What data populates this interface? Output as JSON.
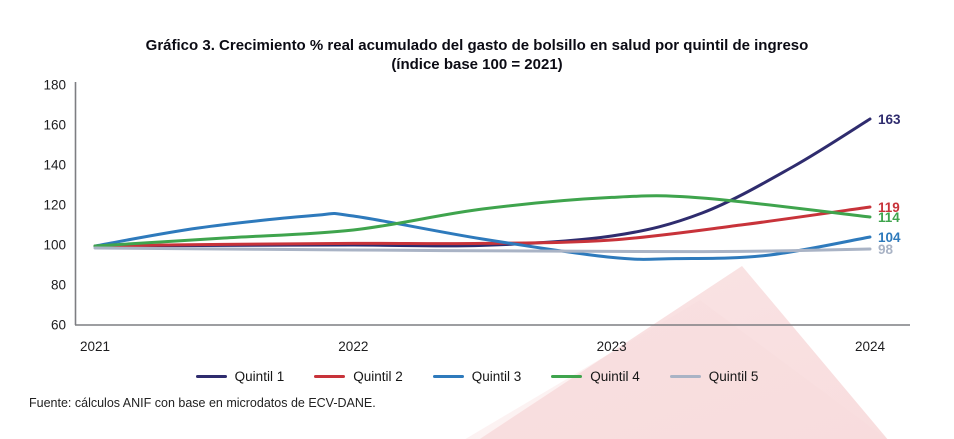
{
  "title": {
    "line1": "Gráfico 3. Crecimiento % real acumulado del gasto de bolsillo en salud por quintil de ingreso",
    "line2": "(índice base 100 = 2021)"
  },
  "source": "Fuente: cálculos ANIF con base en microdatos de ECV-DANE.",
  "style": {
    "axis_color": "#7d7e82",
    "tick_text_color": "#1d1d1f",
    "watermark_pink": "#f8dbdc"
  },
  "chart_data": {
    "type": "line",
    "title": "Gráfico 3. Crecimiento % real acumulado del gasto de bolsillo en salud por quintil de ingreso",
    "subtitle": "(índice base 100 = 2021)",
    "xlabel": "",
    "ylabel": "",
    "x_ticks": [
      2021,
      2022,
      2023,
      2024
    ],
    "y_ticks": [
      60,
      80,
      100,
      120,
      140,
      160,
      180
    ],
    "xlim": [
      2021,
      2024
    ],
    "ylim": [
      60,
      180
    ],
    "grid": false,
    "legend_position": "bottom",
    "index_base_note": "índice base 100 = 2021",
    "series": [
      {
        "name": "Quintil 1",
        "color": "#2f2c6e",
        "end_value": 163,
        "values_by_year": {
          "2021": 100,
          "2022": 100,
          "2023": 104,
          "2024": 163
        },
        "points": [
          [
            2021,
            99.5
          ],
          [
            2021.5,
            99.8
          ],
          [
            2022,
            100
          ],
          [
            2022.5,
            99.8
          ],
          [
            2023,
            104.5
          ],
          [
            2023.35,
            116
          ],
          [
            2023.7,
            139
          ],
          [
            2024,
            163
          ]
        ]
      },
      {
        "name": "Quintil 2",
        "color": "#c8333a",
        "end_value": 119,
        "values_by_year": {
          "2021": 100,
          "2022": 101,
          "2023": 102,
          "2024": 119
        },
        "points": [
          [
            2021,
            99.5
          ],
          [
            2021.5,
            100.3
          ],
          [
            2022,
            100.8
          ],
          [
            2022.5,
            100.8
          ],
          [
            2023,
            102.5
          ],
          [
            2023.5,
            110
          ],
          [
            2024,
            119
          ]
        ]
      },
      {
        "name": "Quintil 3",
        "color": "#2e7abc",
        "end_value": 104,
        "values_by_year": {
          "2021": 100,
          "2022": 114,
          "2023": 94,
          "2024": 104
        },
        "points": [
          [
            2021,
            99.5
          ],
          [
            2021.4,
            108.5
          ],
          [
            2021.85,
            114.8
          ],
          [
            2022,
            114.5
          ],
          [
            2022.5,
            103
          ],
          [
            2023,
            93.8
          ],
          [
            2023.25,
            93.2
          ],
          [
            2023.6,
            94.8
          ],
          [
            2024,
            104
          ]
        ]
      },
      {
        "name": "Quintil 4",
        "color": "#3fa44d",
        "end_value": 114,
        "values_by_year": {
          "2021": 100,
          "2022": 107,
          "2023": 124,
          "2024": 114
        },
        "points": [
          [
            2021,
            99.5
          ],
          [
            2021.5,
            103.5
          ],
          [
            2022,
            107.5
          ],
          [
            2022.5,
            118
          ],
          [
            2023,
            123.8
          ],
          [
            2023.35,
            123.5
          ],
          [
            2024,
            114
          ]
        ]
      },
      {
        "name": "Quintil 5",
        "color": "#a9b3c5",
        "end_value": 98,
        "values_by_year": {
          "2021": 100,
          "2022": 97,
          "2023": 97,
          "2024": 98
        },
        "points": [
          [
            2021,
            98.5
          ],
          [
            2022,
            97.5
          ],
          [
            2023,
            96.8
          ],
          [
            2023.5,
            96.8
          ],
          [
            2024,
            98
          ]
        ]
      }
    ]
  }
}
